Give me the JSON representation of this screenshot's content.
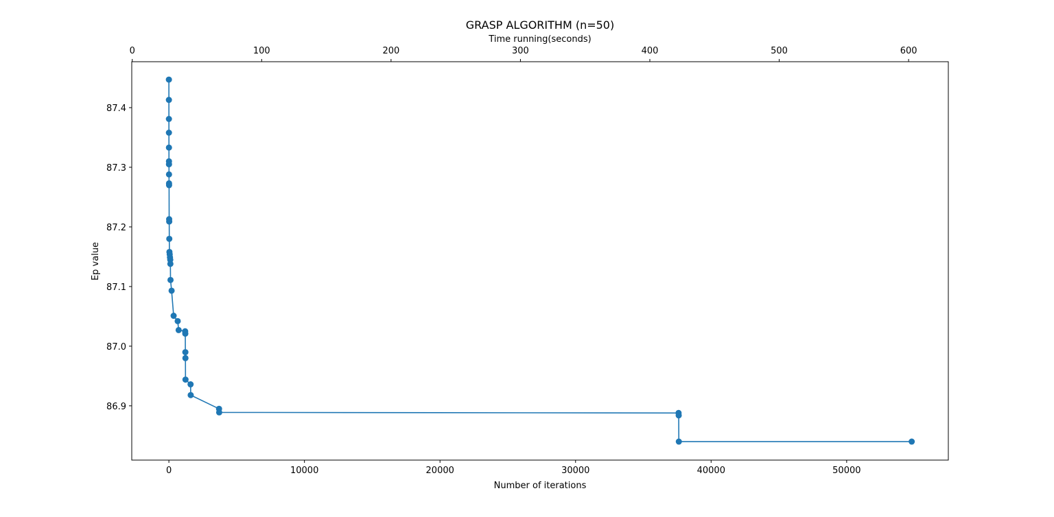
{
  "chart_data": {
    "type": "line",
    "title": "GRASP ALGORITHM (n=50)",
    "xlabel": "Number of iterations",
    "ylabel": "Ep value",
    "x2label": "Time running(seconds)",
    "xlim": [
      -2740,
      57500
    ],
    "x2lim": [
      -0.4,
      630.7
    ],
    "ylim": [
      86.809,
      87.477
    ],
    "xticks": [
      0,
      10000,
      20000,
      30000,
      40000,
      50000
    ],
    "x2ticks": [
      0,
      100,
      200,
      300,
      400,
      500,
      600
    ],
    "yticks": [
      86.9,
      87.0,
      87.1,
      87.2,
      87.3,
      87.4
    ],
    "ytick_labels": [
      "86.9",
      "87.0",
      "87.1",
      "87.2",
      "87.3",
      "87.4"
    ],
    "grid": false,
    "marker": "circle",
    "color": "#1f77b4",
    "series": [
      {
        "points": [
          [
            0,
            87.447
          ],
          [
            1,
            87.413
          ],
          [
            2,
            87.381
          ],
          [
            3,
            87.358
          ],
          [
            5,
            87.333
          ],
          [
            6,
            87.31
          ],
          [
            8,
            87.305
          ],
          [
            10,
            87.288
          ],
          [
            12,
            87.273
          ],
          [
            14,
            87.27
          ],
          [
            20,
            87.213
          ],
          [
            24,
            87.209
          ],
          [
            30,
            87.18
          ],
          [
            40,
            87.158
          ],
          [
            60,
            87.154
          ],
          [
            80,
            87.149
          ],
          [
            100,
            87.145
          ],
          [
            110,
            87.138
          ],
          [
            120,
            87.111
          ],
          [
            200,
            87.093
          ],
          [
            350,
            87.051
          ],
          [
            650,
            87.042
          ],
          [
            720,
            87.027
          ],
          [
            1200,
            87.025
          ],
          [
            1210,
            87.021
          ],
          [
            1215,
            86.99
          ],
          [
            1220,
            86.98
          ],
          [
            1225,
            86.944
          ],
          [
            1600,
            86.936
          ],
          [
            1610,
            86.918
          ],
          [
            3700,
            86.895
          ],
          [
            3710,
            86.889
          ],
          [
            37600,
            86.888
          ],
          [
            37610,
            86.884
          ],
          [
            37620,
            86.84
          ],
          [
            54800,
            86.84
          ]
        ]
      }
    ]
  }
}
